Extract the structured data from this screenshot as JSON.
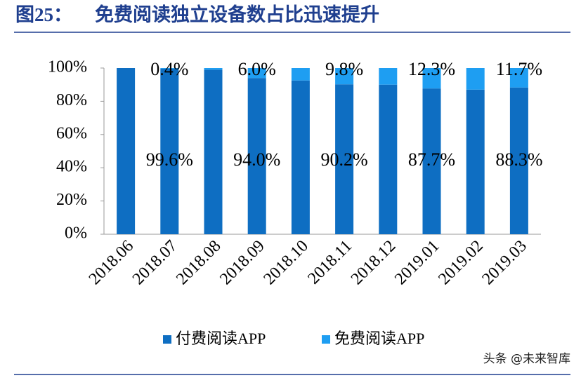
{
  "header": {
    "figure": "图25：",
    "title": "免费阅读独立设备数占比迅速提升"
  },
  "watermark": "头条 @未来智库",
  "chart_data": {
    "type": "stacked-bar",
    "categories": [
      "2018.06",
      "2018.07",
      "2018.08",
      "2018.09",
      "2018.10",
      "2018.11",
      "2018.12",
      "2019.01",
      "2019.02",
      "2019.03"
    ],
    "series": [
      {
        "name": "付费阅读APP",
        "color": "#0e6ec2",
        "values": [
          100,
          99.6,
          99,
          94.0,
          92.5,
          90.2,
          90,
          87.7,
          87,
          88.3
        ],
        "value_labels": [
          null,
          "99.6%",
          null,
          "94.0%",
          null,
          "90.2%",
          null,
          "87.7%",
          null,
          "88.3%"
        ]
      },
      {
        "name": "免费阅读APP",
        "color": "#1e9ef2",
        "values": [
          0,
          0.4,
          1,
          6.0,
          7.5,
          9.8,
          10,
          12.3,
          13,
          11.7
        ],
        "value_labels": [
          null,
          "0.4%",
          null,
          "6.0%",
          null,
          "9.8%",
          null,
          "12.3%",
          null,
          "11.7%"
        ]
      }
    ],
    "ylim": [
      0,
      100
    ],
    "yticks": [
      {
        "value": 0,
        "label": "0%"
      },
      {
        "value": 20,
        "label": "20%"
      },
      {
        "value": 40,
        "label": "40%"
      },
      {
        "value": 60,
        "label": "60%"
      },
      {
        "value": 80,
        "label": "80%"
      },
      {
        "value": 100,
        "label": "100%"
      }
    ],
    "legend": "bottom"
  }
}
